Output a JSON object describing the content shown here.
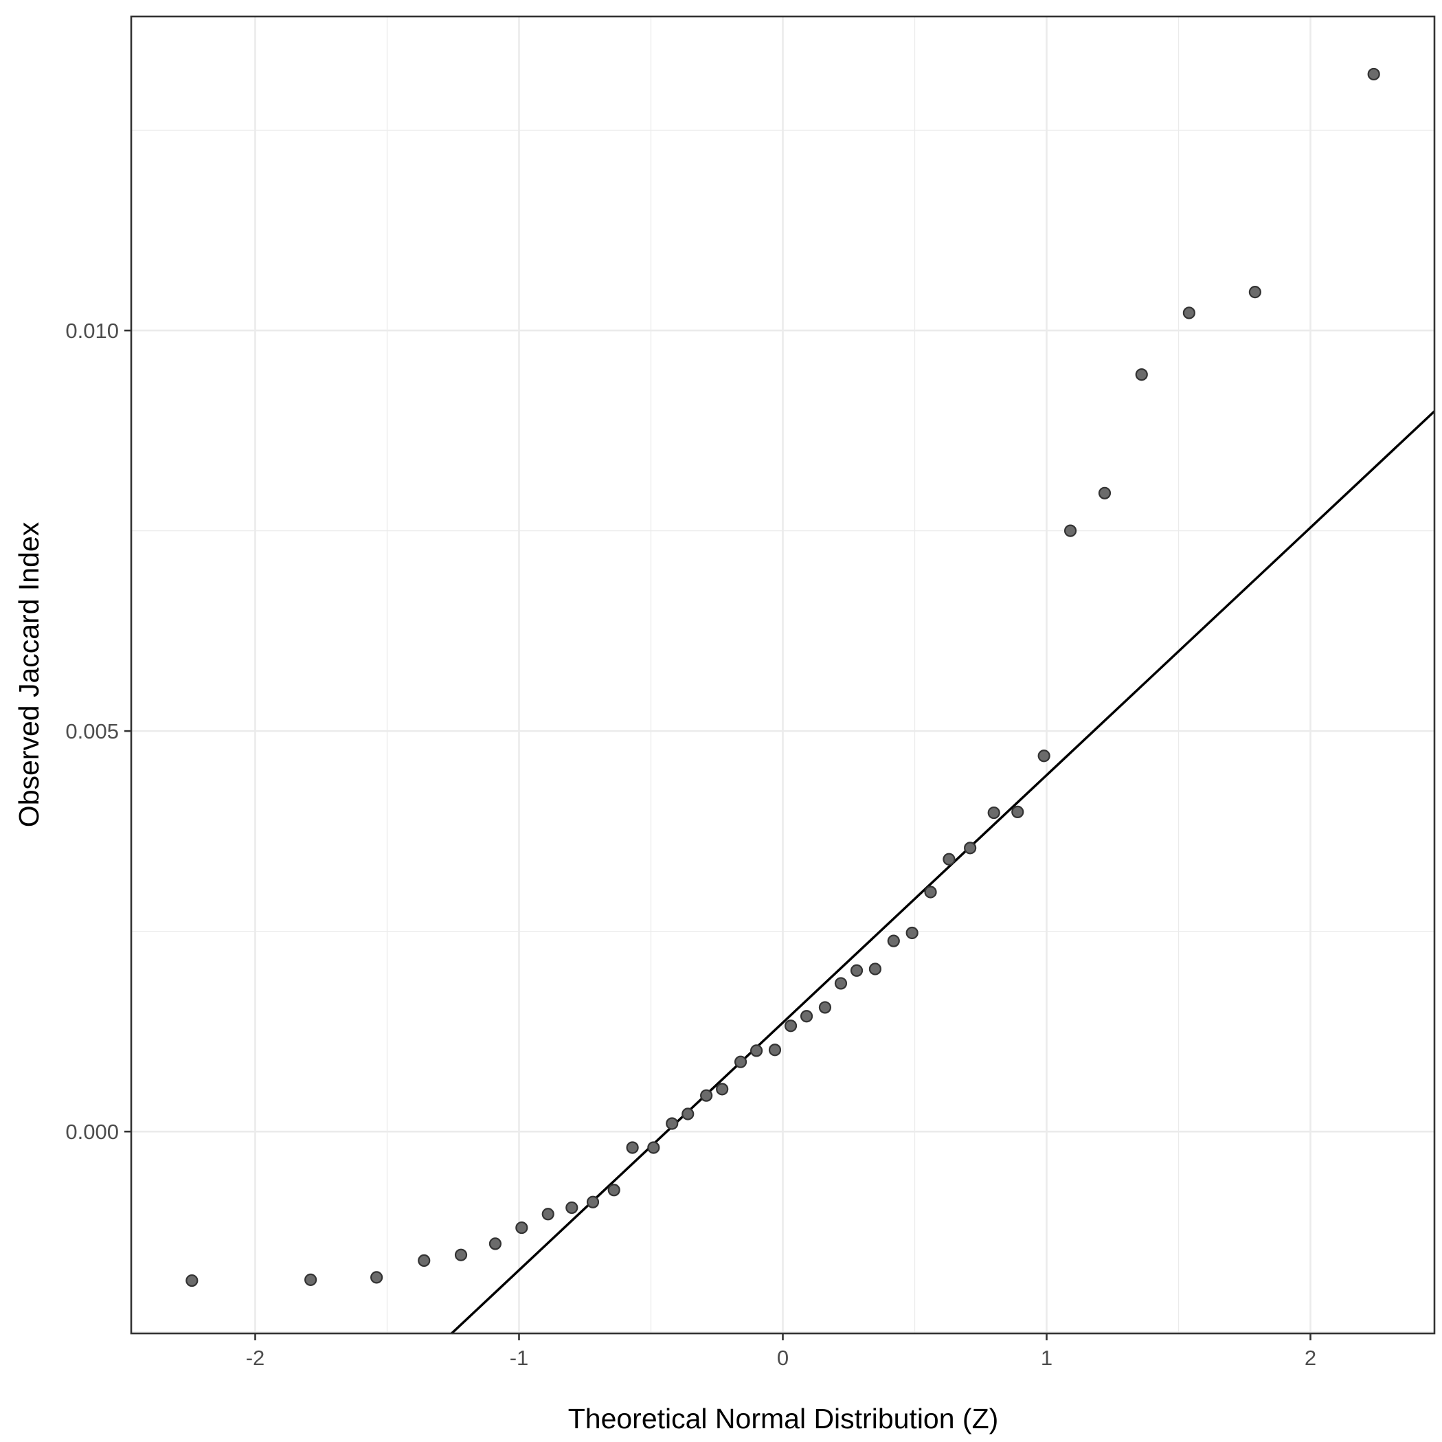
{
  "chart_data": {
    "type": "scatter",
    "xlabel": "Theoretical Normal Distribution (Z)",
    "ylabel": "Observed Jaccard Index",
    "xlim": [
      -2.47,
      2.47
    ],
    "ylim": [
      -0.00252,
      0.01392
    ],
    "x_ticks": [
      -2,
      -1,
      0,
      1,
      2
    ],
    "x_tick_labels": [
      "-2",
      "-1",
      "0",
      "1",
      "2"
    ],
    "y_ticks": [
      0.0,
      0.005,
      0.01
    ],
    "y_tick_labels": [
      "0.000",
      "0.005",
      "0.010"
    ],
    "grid": true,
    "points": [
      {
        "x": -2.24,
        "y": -0.00186
      },
      {
        "x": -1.79,
        "y": -0.00185
      },
      {
        "x": -1.54,
        "y": -0.00182
      },
      {
        "x": -1.36,
        "y": -0.00161
      },
      {
        "x": -1.22,
        "y": -0.00154
      },
      {
        "x": -1.09,
        "y": -0.0014
      },
      {
        "x": -0.99,
        "y": -0.0012
      },
      {
        "x": -0.89,
        "y": -0.00103
      },
      {
        "x": -0.8,
        "y": -0.00095
      },
      {
        "x": -0.72,
        "y": -0.00088
      },
      {
        "x": -0.64,
        "y": -0.00073
      },
      {
        "x": -0.57,
        "y": -0.0002
      },
      {
        "x": -0.49,
        "y": -0.0002
      },
      {
        "x": -0.42,
        "y": 0.0001
      },
      {
        "x": -0.36,
        "y": 0.00022
      },
      {
        "x": -0.29,
        "y": 0.00045
      },
      {
        "x": -0.23,
        "y": 0.00053
      },
      {
        "x": -0.16,
        "y": 0.00087
      },
      {
        "x": -0.1,
        "y": 0.00101
      },
      {
        "x": -0.03,
        "y": 0.00102
      },
      {
        "x": 0.03,
        "y": 0.00132
      },
      {
        "x": 0.09,
        "y": 0.00144
      },
      {
        "x": 0.16,
        "y": 0.00155
      },
      {
        "x": 0.22,
        "y": 0.00185
      },
      {
        "x": 0.28,
        "y": 0.00201
      },
      {
        "x": 0.35,
        "y": 0.00203
      },
      {
        "x": 0.42,
        "y": 0.00238
      },
      {
        "x": 0.49,
        "y": 0.00248
      },
      {
        "x": 0.56,
        "y": 0.00299
      },
      {
        "x": 0.63,
        "y": 0.0034
      },
      {
        "x": 0.71,
        "y": 0.00354
      },
      {
        "x": 0.8,
        "y": 0.00398
      },
      {
        "x": 0.89,
        "y": 0.00399
      },
      {
        "x": 0.99,
        "y": 0.00469
      },
      {
        "x": 1.09,
        "y": 0.0075
      },
      {
        "x": 1.22,
        "y": 0.00797
      },
      {
        "x": 1.36,
        "y": 0.00945
      },
      {
        "x": 1.54,
        "y": 0.01022
      },
      {
        "x": 1.79,
        "y": 0.01048
      },
      {
        "x": 2.24,
        "y": 0.0132
      }
    ],
    "reference_line": {
      "intercept": 0.00136,
      "slope": 0.00309
    }
  }
}
